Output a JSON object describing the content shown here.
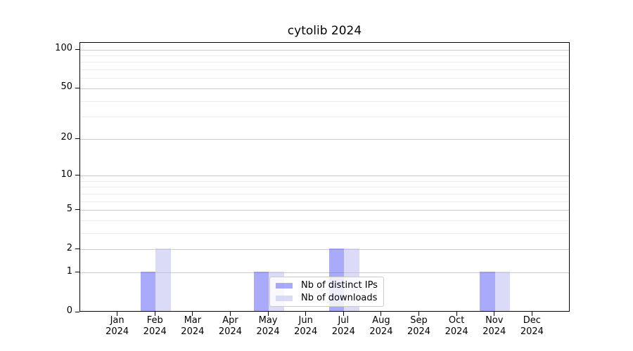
{
  "chart_data": {
    "type": "bar",
    "title": "cytolib 2024",
    "x": {
      "months": [
        "Jan",
        "Feb",
        "Mar",
        "Apr",
        "May",
        "Jun",
        "Jul",
        "Aug",
        "Sep",
        "Oct",
        "Nov",
        "Dec"
      ],
      "year": "2024"
    },
    "series": [
      {
        "name": "Nb of distinct IPs",
        "color": "#aaaaf7",
        "fill": "rgba(85,85,245,0.5)",
        "values": [
          0,
          1,
          0,
          0,
          1,
          0,
          2,
          0,
          0,
          0,
          1,
          0
        ]
      },
      {
        "name": "Nb of downloads",
        "color": "#dbdbf8",
        "fill": "rgba(183,183,241,0.5)",
        "values": [
          0,
          2,
          0,
          0,
          1,
          0,
          2,
          0,
          0,
          0,
          1,
          0
        ]
      }
    ],
    "y_axis": {
      "ticks": [
        0,
        1,
        2,
        5,
        10,
        20,
        50,
        100
      ],
      "minor_ticks": [
        3,
        4,
        6,
        7,
        8,
        9,
        30,
        40,
        60,
        70,
        80,
        90
      ],
      "scale": "log1p",
      "top_value": 113.3,
      "ylim": [
        0,
        113.3
      ]
    },
    "legend": {
      "position": "inside-bottom-center"
    },
    "colors": {
      "major_grid": "#cccccc",
      "minor_grid": "#ededed",
      "axis": "#000000",
      "background": "#ffffff"
    }
  }
}
